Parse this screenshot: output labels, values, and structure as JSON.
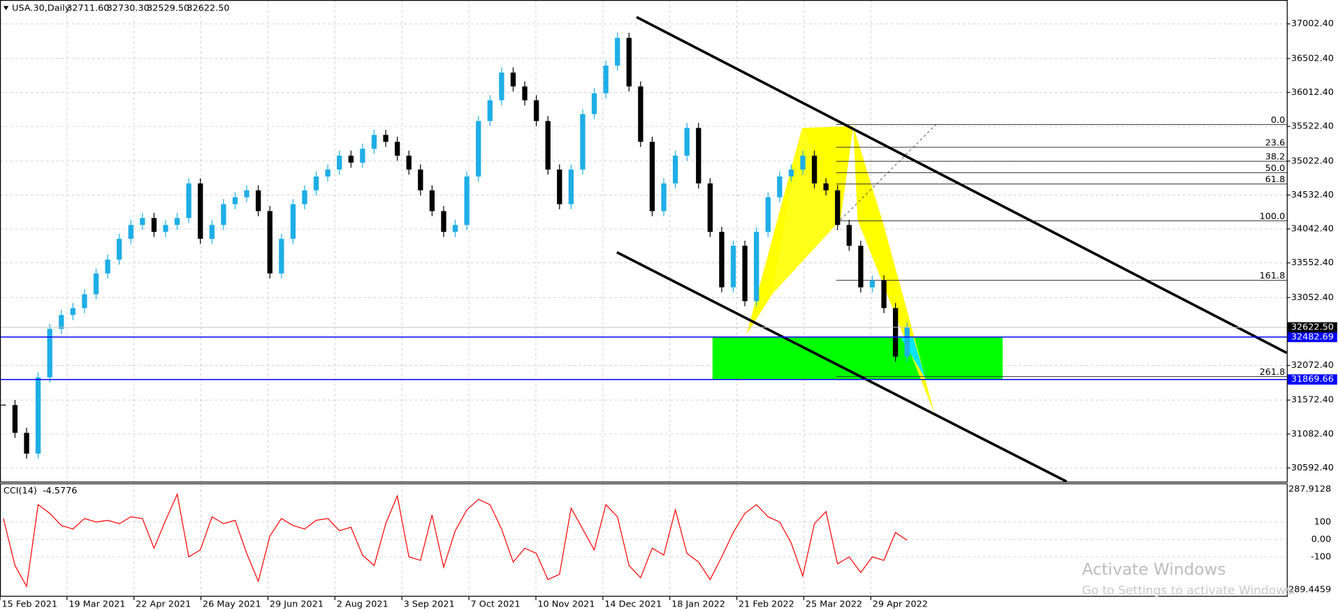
{
  "chart_data": {
    "type": "candlestick",
    "title": "USA.30,Daily",
    "ohlc": [
      32711.6,
      32730.3,
      32529.5,
      32622.5
    ],
    "ohlc_labels": [
      "32711.60",
      "32730.30",
      "32529.50",
      "32622.50"
    ],
    "closes": [
      31500,
      31100,
      30800,
      31900,
      32600,
      32800,
      32900,
      33100,
      33400,
      33600,
      33900,
      34100,
      34200,
      34000,
      34100,
      34200,
      34700,
      33900,
      34100,
      34400,
      34500,
      34600,
      34300,
      33400,
      33900,
      34400,
      34600,
      34800,
      34900,
      35100,
      35000,
      35200,
      35400,
      35300,
      35100,
      34900,
      34600,
      34300,
      34000,
      34100,
      34800,
      35600,
      35900,
      36300,
      36100,
      35900,
      35600,
      34900,
      34400,
      34900,
      35700,
      36000,
      36400,
      36800,
      36100,
      35300,
      34300,
      34700,
      35100,
      35500,
      34700,
      34000,
      33200,
      33800,
      33000,
      34000,
      34500,
      34800,
      34900,
      35100,
      34700,
      34600,
      34100,
      33800,
      33200,
      33300,
      32900,
      32200,
      32622.5
    ],
    "up_color": "#1eaee6",
    "down_color": "#000000",
    "ylim": [
      30395.5,
      37346.9
    ],
    "yticks": [
      {
        "value": 37002.4,
        "label": "37002.40"
      },
      {
        "value": 36502.4,
        "label": "36502.40"
      },
      {
        "value": 36012.4,
        "label": "36012.40"
      },
      {
        "value": 35522.4,
        "label": "35522.40"
      },
      {
        "value": 35022.4,
        "label": "35022.40"
      },
      {
        "value": 34532.4,
        "label": "34532.40"
      },
      {
        "value": 34042.4,
        "label": "34042.40"
      },
      {
        "value": 33552.4,
        "label": "33552.40"
      },
      {
        "value": 33052.4,
        "label": "33052.40"
      },
      {
        "value": 32072.4,
        "label": "32072.40"
      },
      {
        "value": 31572.4,
        "label": "31572.40"
      },
      {
        "value": 31082.4,
        "label": "31082.40"
      },
      {
        "value": 30592.4,
        "label": "30592.40"
      }
    ],
    "grid": true,
    "current_price": {
      "value": 32622.5,
      "label": "32622.50"
    },
    "hlines": [
      {
        "value": 32482.69,
        "label": "32482.69"
      },
      {
        "value": 31869.66,
        "label": "31869.66"
      }
    ],
    "hline_color": "#0000ff",
    "zone_color": "#00ff00",
    "fib_high": 35550,
    "fib_low": 34160,
    "fib_levels": [
      {
        "value": 0,
        "label": "0.0"
      },
      23.6,
      38.2,
      {
        "value": 50,
        "label": "50.0"
      },
      61.8,
      {
        "value": 100,
        "label": "100.0"
      },
      161.8,
      261.8
    ],
    "dates": [
      "15 Feb 2021",
      "19 Mar 2021",
      "22 Apr 2021",
      "26 May 2021",
      "29 Jun 2021",
      "2 Aug 2021",
      "3 Sep 2021",
      "7 Oct 2021",
      "10 Nov 2021",
      "14 Dec 2021",
      "18 Jan 2022",
      "21 Feb 2022",
      "25 Mar 2022",
      "29 Apr 2022"
    ],
    "indicator": {
      "type": "line",
      "name": "CCI(14)",
      "current_label": "-4.5776",
      "color": "#ff0000",
      "values": [
        120,
        -150,
        -270,
        200,
        150,
        80,
        60,
        120,
        100,
        110,
        90,
        130,
        120,
        -50,
        110,
        260,
        -100,
        -60,
        130,
        90,
        110,
        -80,
        -240,
        20,
        120,
        80,
        60,
        110,
        120,
        50,
        70,
        -90,
        -150,
        90,
        250,
        -100,
        -120,
        140,
        -160,
        50,
        170,
        230,
        200,
        60,
        -130,
        -50,
        -80,
        -230,
        -200,
        180,
        60,
        -60,
        200,
        130,
        -150,
        -220,
        -50,
        -90,
        170,
        -80,
        -130,
        -230,
        -100,
        40,
        150,
        200,
        130,
        100,
        -20,
        -210,
        90,
        160,
        -140,
        -100,
        -190,
        -100,
        -120,
        40,
        -4.5776
      ],
      "ylim": [
        -289.4459,
        287.9128
      ],
      "yticks": [
        {
          "value": 287.9128,
          "label": "287.9128"
        },
        100,
        {
          "value": 0,
          "label": "0.00"
        },
        -100,
        {
          "value": -289.4459,
          "label": "-289.4459"
        }
      ]
    },
    "watermark": [
      "Activate Windows",
      "Go to Settings to activate Windows."
    ]
  }
}
